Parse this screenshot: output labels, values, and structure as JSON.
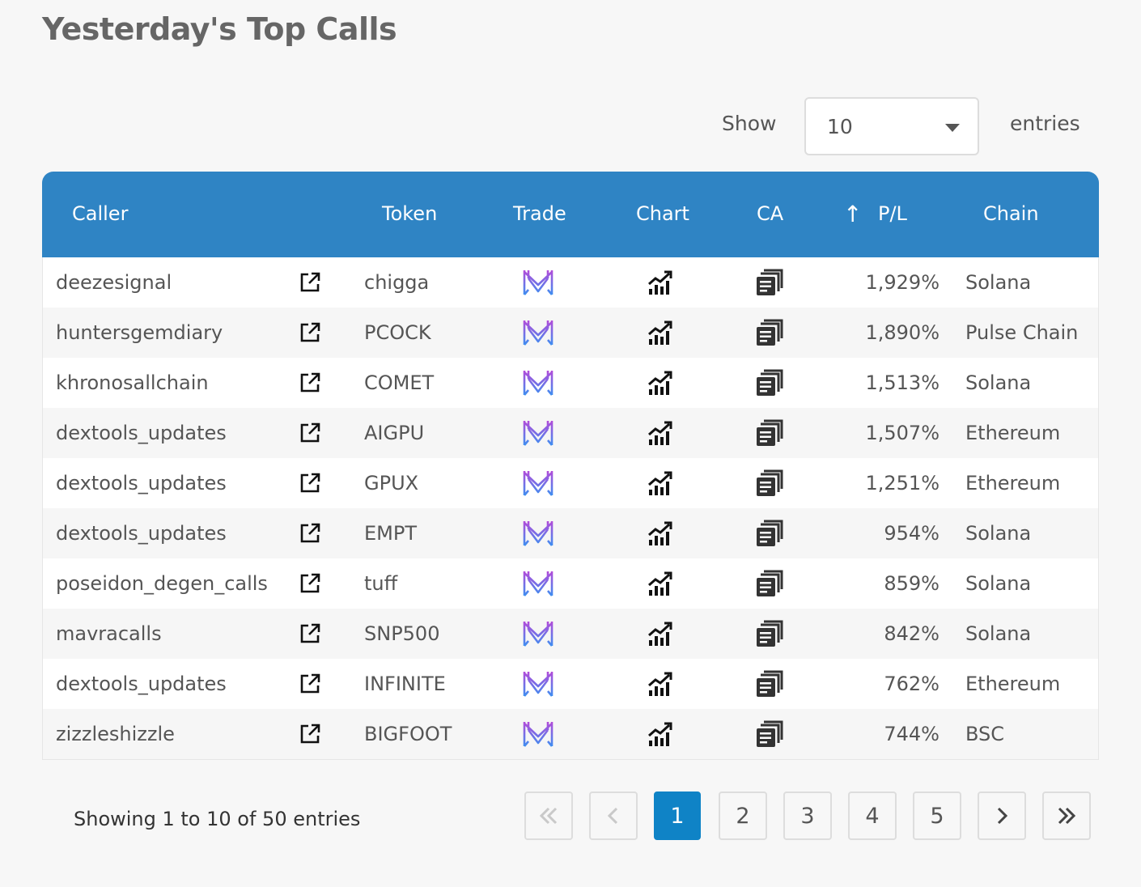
{
  "page": {
    "title": "Yesterday's Top Calls"
  },
  "length_control": {
    "show_label": "Show",
    "value": "10",
    "entries_label": "entries"
  },
  "table": {
    "header_color": "#2f84c4",
    "columns": {
      "caller": "Caller",
      "token": "Token",
      "trade": "Trade",
      "chart": "Chart",
      "ca": "CA",
      "sort_arrow": "↑",
      "pl": "P/L",
      "chain": "Chain"
    },
    "sorted_column": "P/L",
    "rows": [
      {
        "caller": "deezesignal",
        "token": "chigga",
        "pl": "1,929%",
        "chain": "Solana"
      },
      {
        "caller": "huntersgemdiary",
        "token": "PCOCK",
        "pl": "1,890%",
        "chain": "Pulse Chain"
      },
      {
        "caller": "khronosallchain",
        "token": "COMET",
        "pl": "1,513%",
        "chain": "Solana"
      },
      {
        "caller": "dextools_updates",
        "token": "AIGPU",
        "pl": "1,507%",
        "chain": "Ethereum"
      },
      {
        "caller": "dextools_updates",
        "token": "GPUX",
        "pl": "1,251%",
        "chain": "Ethereum"
      },
      {
        "caller": "dextools_updates",
        "token": "EMPT",
        "pl": "954%",
        "chain": "Solana"
      },
      {
        "caller": "poseidon_degen_calls",
        "token": "tuff",
        "pl": "859%",
        "chain": "Solana"
      },
      {
        "caller": "mavracalls",
        "token": "SNP500",
        "pl": "842%",
        "chain": "Solana"
      },
      {
        "caller": "dextools_updates",
        "token": "INFINITE",
        "pl": "762%",
        "chain": "Ethereum"
      },
      {
        "caller": "zizzleshizzle",
        "token": "BIGFOOT",
        "pl": "744%",
        "chain": "BSC"
      }
    ],
    "row_icons": {
      "link": "external-link-icon",
      "trade": "trade-logo-icon",
      "chart": "chart-icon",
      "ca": "copy-icon"
    }
  },
  "footer": {
    "info": "Showing 1 to 10 of 50 entries",
    "pagination": {
      "first": "«",
      "prev": "‹",
      "next": "›",
      "last": "»",
      "pages": [
        "1",
        "2",
        "3",
        "4",
        "5"
      ],
      "active_page": "1",
      "active_color": "#0f83c6"
    }
  }
}
